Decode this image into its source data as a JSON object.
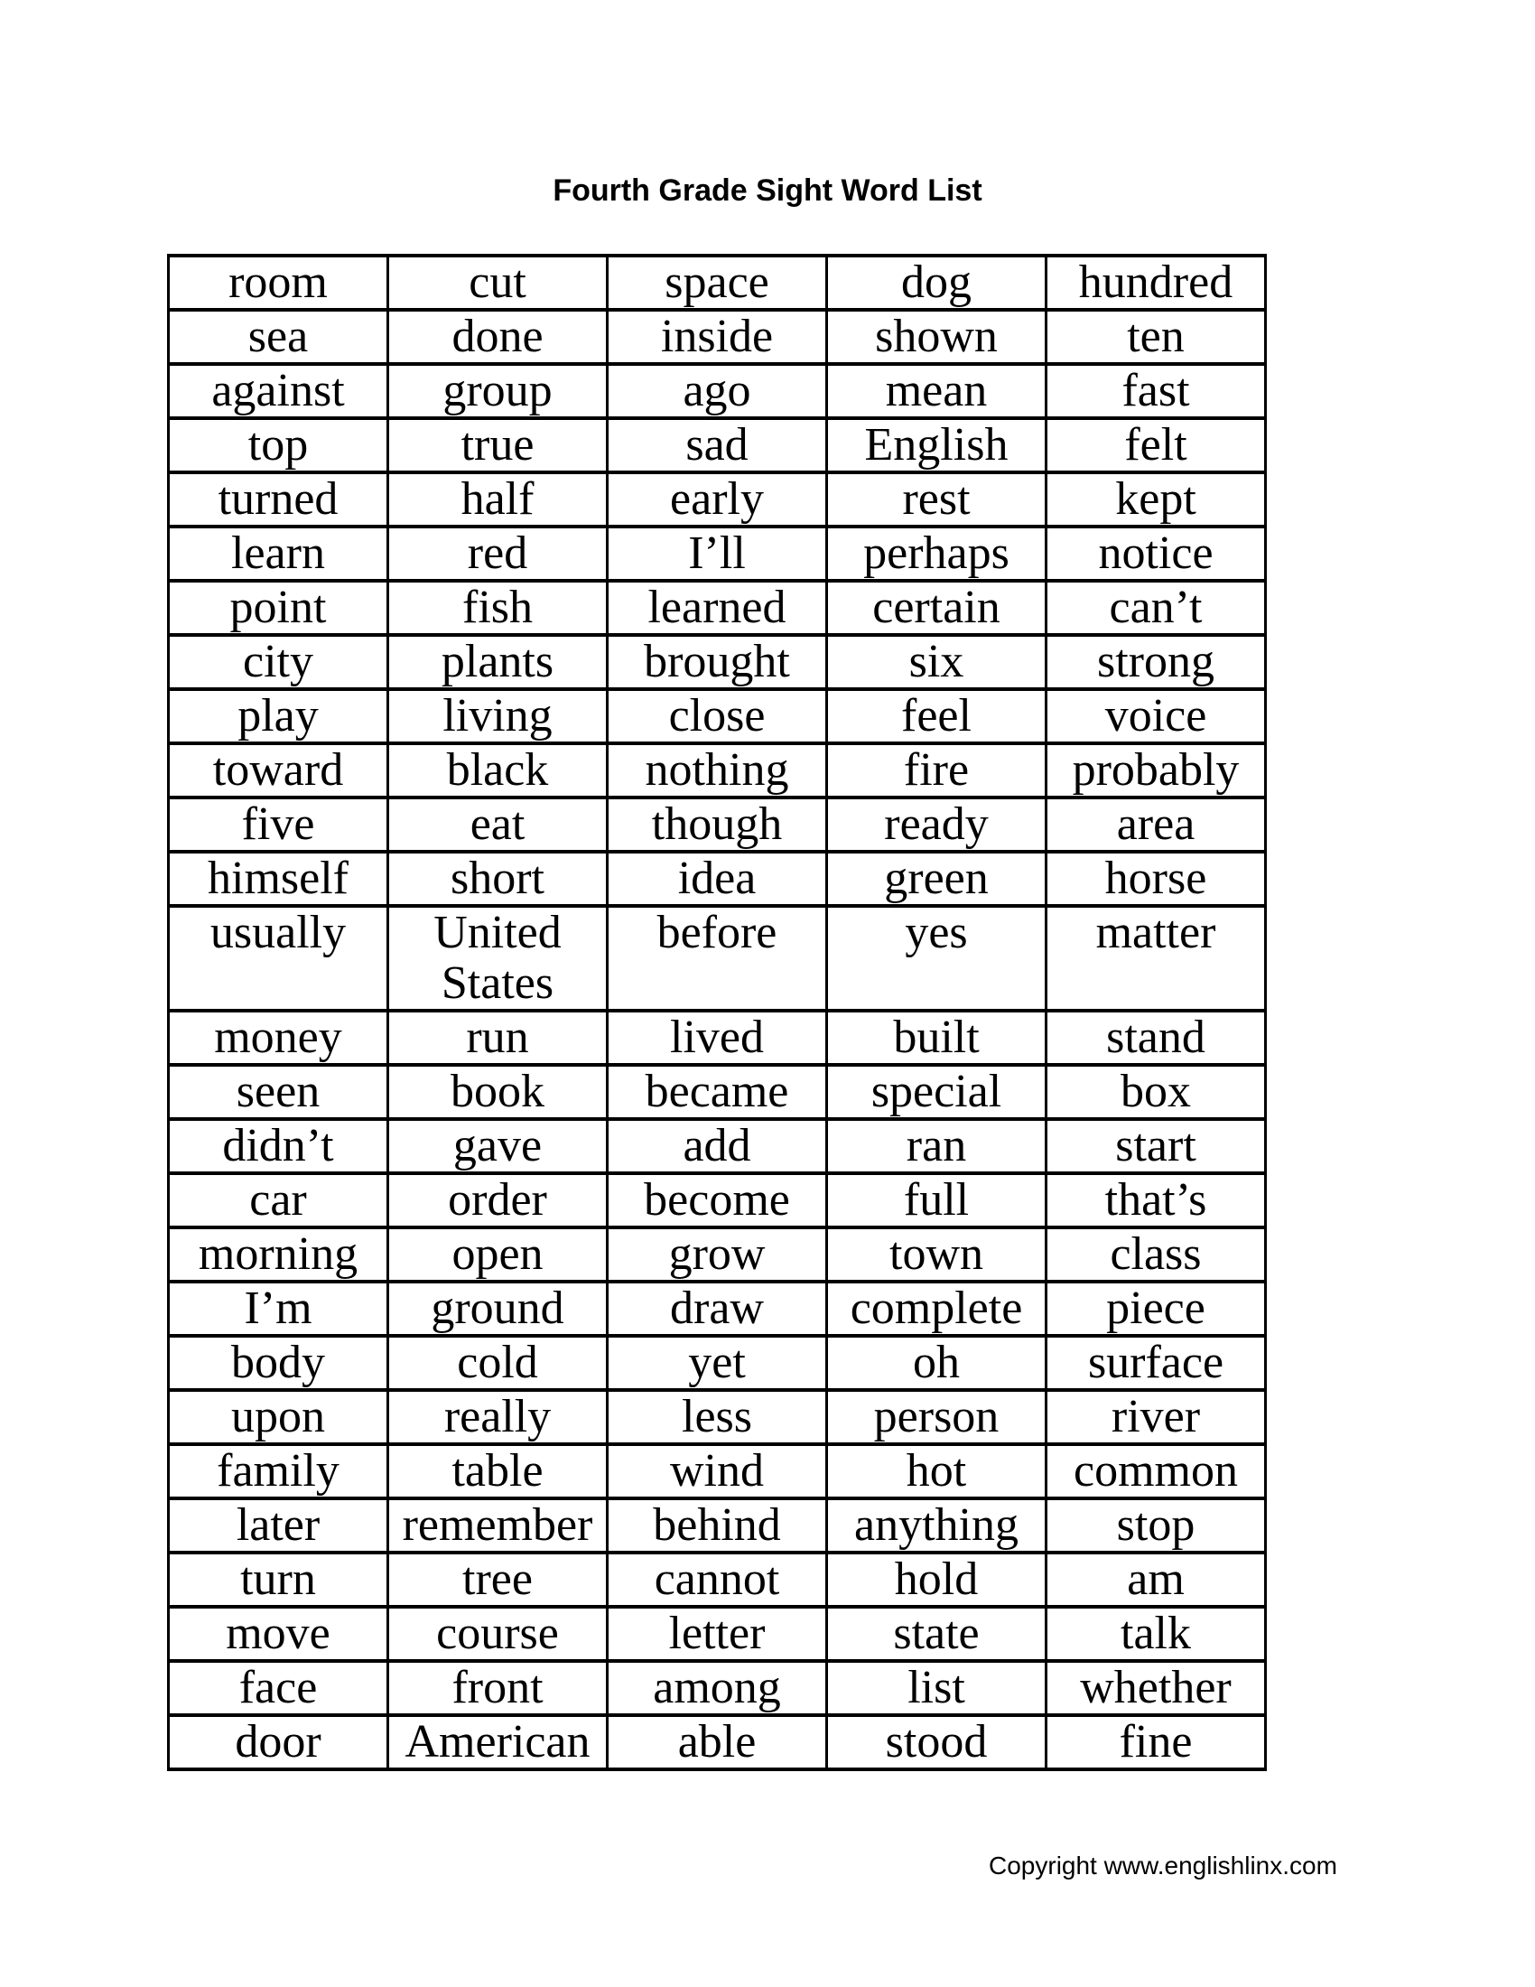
{
  "title": "Fourth Grade Sight Word List",
  "table": {
    "columns": 5,
    "rows": [
      [
        "room",
        "cut",
        "space",
        "dog",
        "hundred"
      ],
      [
        "sea",
        "done",
        "inside",
        "shown",
        "ten"
      ],
      [
        "against",
        "group",
        "ago",
        "mean",
        "fast"
      ],
      [
        "top",
        "true",
        "sad",
        "English",
        "felt"
      ],
      [
        "turned",
        "half",
        "early",
        "rest",
        "kept"
      ],
      [
        "learn",
        "red",
        "I’ll",
        "perhaps",
        "notice"
      ],
      [
        "point",
        "fish",
        "learned",
        "certain",
        "can’t"
      ],
      [
        "city",
        "plants",
        "brought",
        "six",
        "strong"
      ],
      [
        "play",
        "living",
        "close",
        "feel",
        "voice"
      ],
      [
        "toward",
        "black",
        "nothing",
        "fire",
        "probably"
      ],
      [
        "five",
        "eat",
        "though",
        "ready",
        "area"
      ],
      [
        "himself",
        "short",
        "idea",
        "green",
        "horse"
      ],
      [
        "usually",
        "United States",
        "before",
        "yes",
        "matter"
      ],
      [
        "money",
        "run",
        "lived",
        "built",
        "stand"
      ],
      [
        "seen",
        "book",
        "became",
        "special",
        "box"
      ],
      [
        "didn’t",
        "gave",
        "add",
        "ran",
        "start"
      ],
      [
        "car",
        "order",
        "become",
        "full",
        "that’s"
      ],
      [
        "morning",
        "open",
        "grow",
        "town",
        "class"
      ],
      [
        "I’m",
        "ground",
        "draw",
        "complete",
        "piece"
      ],
      [
        "body",
        "cold",
        "yet",
        "oh",
        "surface"
      ],
      [
        "upon",
        "really",
        "less",
        "person",
        "river"
      ],
      [
        "family",
        "table",
        "wind",
        "hot",
        "common"
      ],
      [
        "later",
        "remember",
        "behind",
        "anything",
        "stop"
      ],
      [
        "turn",
        "tree",
        "cannot",
        "hold",
        "am"
      ],
      [
        "move",
        "course",
        "letter",
        "state",
        "talk"
      ],
      [
        "face",
        "front",
        "among",
        "list",
        "whether"
      ],
      [
        "door",
        "American",
        "able",
        "stood",
        "fine"
      ]
    ]
  },
  "footer": {
    "copyright": "Copyright www.englishlinx.com"
  },
  "colors": {
    "text": "#000000",
    "background": "#ffffff",
    "table_border": "#000000"
  }
}
